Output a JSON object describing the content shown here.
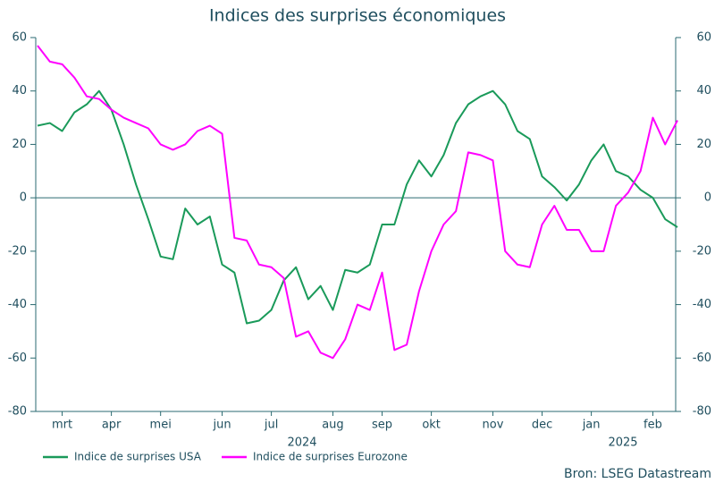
{
  "chart_data": {
    "type": "line",
    "title": "Indices des surprises économiques",
    "categories": [
      null,
      null,
      "mrt",
      null,
      null,
      null,
      "apr",
      null,
      null,
      null,
      "mei",
      null,
      null,
      null,
      null,
      "jun",
      null,
      null,
      null,
      "jul",
      null,
      null,
      null,
      null,
      "aug",
      null,
      null,
      null,
      "sep",
      null,
      null,
      null,
      "okt",
      null,
      null,
      null,
      null,
      "nov",
      null,
      null,
      null,
      "dec",
      null,
      null,
      null,
      "jan",
      null,
      null,
      null,
      null,
      "feb",
      null,
      null
    ],
    "year_labels": [
      "2024",
      "2025"
    ],
    "series": [
      {
        "name": "Indice de surprises USA",
        "color": "#1a9a5a",
        "values": [
          27,
          28,
          25,
          32,
          35,
          40,
          33,
          20,
          5,
          -8,
          -22,
          -23,
          -4,
          -10,
          -7,
          -25,
          -28,
          -47,
          -46,
          -42,
          -31,
          -26,
          -38,
          -33,
          -42,
          -27,
          -28,
          -25,
          -10,
          -10,
          5,
          14,
          8,
          16,
          28,
          35,
          38,
          40,
          35,
          25,
          22,
          8,
          4,
          -1,
          5,
          14,
          20,
          10,
          8,
          3,
          0,
          -8,
          -11
        ]
      },
      {
        "name": "Indice de surprises Eurozone",
        "color": "#ff00ff",
        "values": [
          57,
          51,
          50,
          45,
          38,
          37,
          33,
          30,
          28,
          26,
          20,
          18,
          20,
          25,
          27,
          24,
          -15,
          -16,
          -25,
          -26,
          -30,
          -52,
          -50,
          -58,
          -60,
          -53,
          -40,
          -42,
          -28,
          -57,
          -55,
          -35,
          -20,
          -10,
          -5,
          17,
          16,
          14,
          -20,
          -25,
          -26,
          -10,
          -3,
          -12,
          -12,
          -20,
          -20,
          -3,
          2,
          10,
          30,
          20,
          29
        ]
      }
    ],
    "ylim": [
      -80,
      60
    ],
    "yticks": [
      -80,
      -60,
      -40,
      -20,
      0,
      20,
      40,
      60
    ],
    "y2lim": [
      -80,
      60
    ],
    "y2ticks": [
      -80,
      -60,
      -40,
      -20,
      0,
      20,
      40,
      60
    ],
    "zero_line": true,
    "source": "Bron: LSEG Datastream"
  }
}
